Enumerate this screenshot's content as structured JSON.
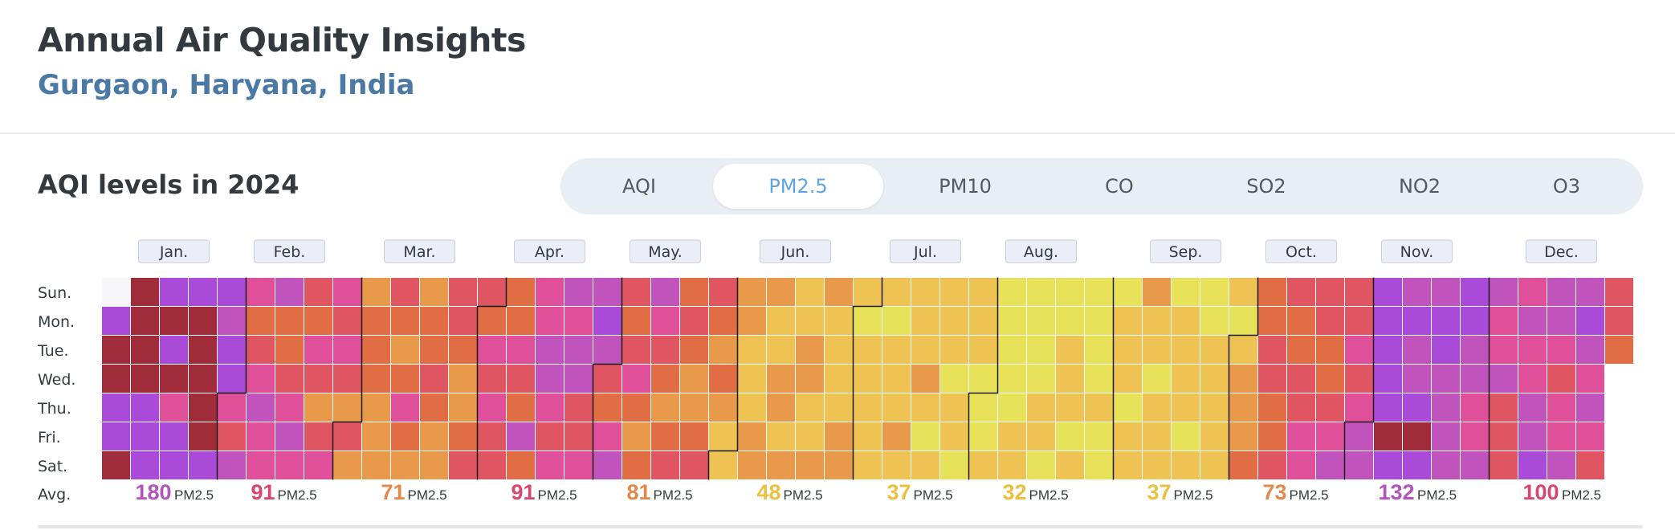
{
  "header": {
    "title": "Annual Air Quality Insights",
    "location": "Gurgaon, Haryana, India"
  },
  "section": {
    "title": "AQI levels in 2024"
  },
  "tabs": [
    {
      "label": "AQI",
      "active": false
    },
    {
      "label": "PM2.5",
      "active": true
    },
    {
      "label": "PM10",
      "active": false
    },
    {
      "label": "CO",
      "active": false
    },
    {
      "label": "SO2",
      "active": false
    },
    {
      "label": "NO2",
      "active": false
    },
    {
      "label": "O3",
      "active": false
    }
  ],
  "colors": {
    "scale": [
      "#c7e35a",
      "#e8e25a",
      "#eec353",
      "#e8994a",
      "#e06d44",
      "#df5562",
      "#df4f9a",
      "#c154bc",
      "#a94bd8",
      "#a02c3a"
    ],
    "empty": "#f6f6f8",
    "month_label_bg": "#eceef7",
    "month_label_border": "#c8ccdc"
  },
  "chart_data": {
    "type": "heatmap",
    "year": 2024,
    "metric": "PM2.5",
    "row_labels": [
      "Sun.",
      "Mon.",
      "Tue.",
      "Wed.",
      "Thu.",
      "Fri.",
      "Sat."
    ],
    "footer_label": "Avg.",
    "months": [
      {
        "label": "Jan.",
        "avg": 180,
        "unit": "PM2.5",
        "color": "#b353bd"
      },
      {
        "label": "Feb.",
        "avg": 91,
        "unit": "PM2.5",
        "color": "#d6466e"
      },
      {
        "label": "Mar.",
        "avg": 71,
        "unit": "PM2.5",
        "color": "#e0894a"
      },
      {
        "label": "Apr.",
        "avg": 91,
        "unit": "PM2.5",
        "color": "#d6466e"
      },
      {
        "label": "May.",
        "avg": 81,
        "unit": "PM2.5",
        "color": "#e0894a"
      },
      {
        "label": "Jun.",
        "avg": 48,
        "unit": "PM2.5",
        "color": "#e8c13e"
      },
      {
        "label": "Jul.",
        "avg": 37,
        "unit": "PM2.5",
        "color": "#e8c13e"
      },
      {
        "label": "Aug.",
        "avg": 32,
        "unit": "PM2.5",
        "color": "#e8c13e"
      },
      {
        "label": "Sep.",
        "avg": 37,
        "unit": "PM2.5",
        "color": "#e8c13e"
      },
      {
        "label": "Oct.",
        "avg": 73,
        "unit": "PM2.5",
        "color": "#e0894a"
      },
      {
        "label": "Nov.",
        "avg": 132,
        "unit": "PM2.5",
        "color": "#b353bd"
      },
      {
        "label": "Dec.",
        "avg": 100,
        "unit": "PM2.5",
        "color": "#d6466e"
      }
    ],
    "month_lengths": [
      31,
      29,
      31,
      30,
      31,
      30,
      31,
      31,
      30,
      31,
      30,
      31
    ],
    "first_weekday": 1,
    "daily_values": [
      160,
      175,
      215,
      165,
      150,
      182,
      250,
      200,
      185,
      240,
      170,
      160,
      170,
      165,
      195,
      150,
      185,
      100,
      160,
      165,
      140,
      175,
      180,
      230,
      180,
      190,
      160,
      170,
      120,
      155,
      170,
      105,
      90,
      110,
      95,
      75,
      90,
      105,
      120,
      100,
      95,
      115,
      70,
      65,
      80,
      95,
      120,
      105,
      90,
      70,
      100,
      80,
      60,
      90,
      105,
      95,
      85,
      100,
      90,
      55,
      80,
      55,
      60,
      65,
      70,
      75,
      60,
      50,
      55,
      85,
      65,
      60,
      70,
      95,
      75,
      60,
      55,
      70,
      75,
      80,
      65,
      60,
      55,
      85,
      90,
      75,
      60,
      55,
      70,
      85,
      80,
      75,
      100,
      90,
      105,
      85,
      80,
      65,
      70,
      95,
      90,
      75,
      110,
      70,
      100,
      95,
      115,
      120,
      100,
      80,
      95,
      110,
      105,
      125,
      110,
      90,
      85,
      95,
      130,
      140,
      115,
      85,
      70,
      105,
      110,
      90,
      75,
      80,
      95,
      65,
      60,
      75,
      110,
      95,
      85,
      75,
      60,
      70,
      80,
      65,
      85,
      70,
      60,
      55,
      75,
      90,
      80,
      70,
      55,
      65,
      50,
      48,
      45,
      55,
      50,
      40,
      45,
      48,
      55,
      60,
      50,
      45,
      40,
      50,
      55,
      45,
      50,
      45,
      40,
      55,
      50,
      45,
      48,
      55,
      50,
      45,
      40,
      35,
      45,
      50,
      55,
      40,
      30,
      35,
      40,
      45,
      35,
      40,
      35,
      30,
      40,
      38,
      45,
      55,
      40,
      35,
      40,
      45,
      50,
      35,
      30,
      38,
      40,
      45,
      35,
      30,
      40,
      35,
      30,
      40,
      35,
      45,
      30,
      25,
      30,
      35,
      28,
      30,
      25,
      30,
      32,
      38,
      35,
      30,
      28,
      25,
      30,
      35,
      40,
      30,
      28,
      30,
      35,
      45,
      38,
      32,
      35,
      30,
      28,
      25,
      30,
      35,
      30,
      28,
      30,
      38,
      40,
      35,
      30,
      40,
      45,
      50,
      38,
      35,
      30,
      40,
      45,
      38,
      30,
      35,
      40,
      45,
      38,
      30,
      35,
      30,
      28,
      35,
      40,
      38,
      45,
      40,
      35,
      32,
      45,
      50,
      55,
      60,
      70,
      65,
      75,
      80,
      85,
      70,
      65,
      80,
      90,
      75,
      70,
      80,
      85,
      95,
      100,
      90,
      80,
      70,
      75,
      85,
      100,
      110,
      90,
      80,
      95,
      85,
      100,
      115,
      130,
      145,
      150,
      160,
      140,
      155,
      175,
      150,
      120,
      140,
      130,
      125,
      160,
      180,
      145,
      135,
      170,
      150,
      130,
      125,
      110,
      120,
      145,
      160,
      130,
      115,
      105,
      95,
      120,
      110,
      95,
      105,
      115,
      90,
      80,
      85,
      100,
      120,
      105,
      95,
      110,
      130,
      140,
      125,
      110,
      100,
      90,
      95,
      105,
      120,
      135,
      140,
      115,
      105,
      110,
      95,
      85,
      80,
      90,
      75
    ]
  }
}
